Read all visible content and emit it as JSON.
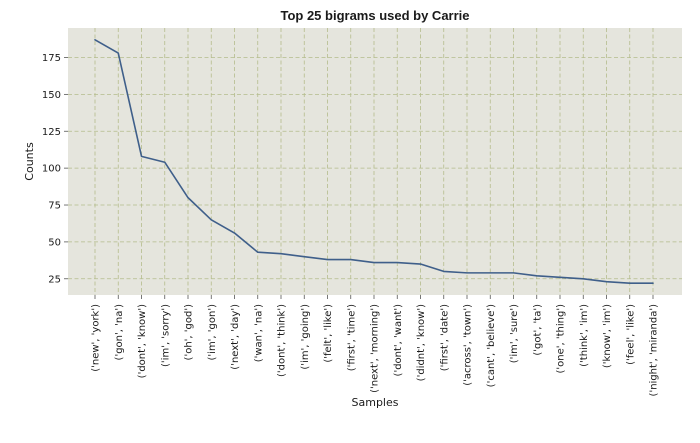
{
  "chart_data": {
    "type": "line",
    "title": "Top 25 bigrams used by Carrie",
    "xlabel": "Samples",
    "ylabel": "Counts",
    "categories": [
      "('new', 'york')",
      "('gon', 'na')",
      "('dont', 'know')",
      "('im', 'sorry')",
      "('oh', 'god')",
      "('im', 'gon')",
      "('next', 'day')",
      "('wan', 'na')",
      "('dont', 'think')",
      "('im', 'going')",
      "('felt', 'like')",
      "('first', 'time')",
      "('next', 'morning')",
      "('dont', 'want')",
      "('didnt', 'know')",
      "('first', 'date')",
      "('across', 'town')",
      "('cant', 'believe')",
      "('im', 'sure')",
      "('got', 'ta')",
      "('one', 'thing')",
      "('think', 'im')",
      "('know', 'im')",
      "('feel', 'like')",
      "('night', 'miranda')"
    ],
    "values": [
      187,
      178,
      108,
      104,
      80,
      65,
      56,
      43,
      42,
      40,
      38,
      38,
      36,
      36,
      35,
      30,
      29,
      29,
      29,
      27,
      26,
      25,
      23,
      22,
      22
    ],
    "yticks": [
      25,
      50,
      75,
      100,
      125,
      150,
      175
    ],
    "ylim": [
      14,
      195
    ],
    "grid": true,
    "colors": {
      "plot_background": "#e5e5dd",
      "grid": "#b4bc8c",
      "line": "#3f5f8a"
    }
  }
}
